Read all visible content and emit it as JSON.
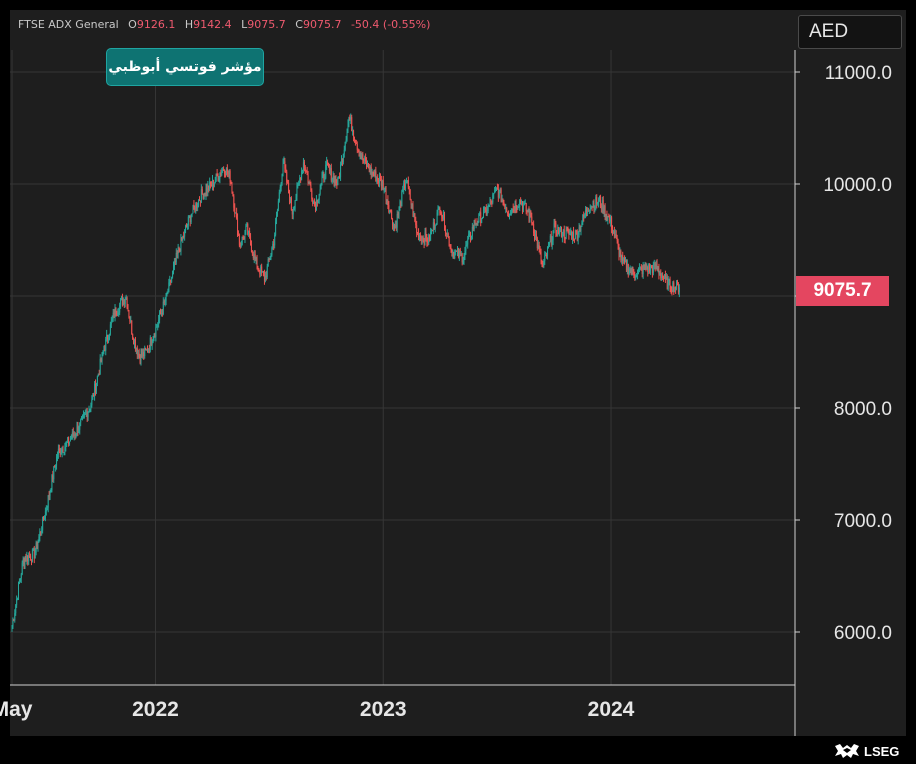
{
  "header": {
    "symbol": "FTSE ADX General",
    "open_label": "O",
    "open": "9126.1",
    "high_label": "H",
    "high": "9142.4",
    "low_label": "L",
    "low": "9075.7",
    "close_label": "C",
    "close": "9075.7",
    "change": "-50.4 (-0.55%)"
  },
  "badge": {
    "text": "مؤشر فوتسي أبوظبي"
  },
  "currency": "AED",
  "last_price": "9075.7",
  "brand": {
    "name": "LSEG"
  },
  "colors": {
    "up": "#26a69a",
    "down": "#ef5350",
    "badge": "#0e7372",
    "price_tag": "#e44660",
    "background": "#1e1e1e"
  },
  "chart_data": {
    "type": "candlestick",
    "title": "FTSE ADX General",
    "currency": "AED",
    "ylim": [
      5600,
      11300
    ],
    "y_ticks": [
      6000,
      7000,
      8000,
      9000,
      10000,
      11000
    ],
    "y_tick_labels": [
      "6000.0",
      "7000.0",
      "8000.0",
      "",
      "10000.0",
      "11000.0"
    ],
    "x_range": [
      2021.37,
      2024.72
    ],
    "x_ticks": [
      {
        "x": 2021.37,
        "label": "May"
      },
      {
        "x": 2022.0,
        "label": "2022"
      },
      {
        "x": 2023.0,
        "label": "2023"
      },
      {
        "x": 2024.0,
        "label": "2024"
      }
    ],
    "grid": true,
    "x": [
      2021.37,
      2021.42,
      2021.47,
      2021.52,
      2021.57,
      2021.62,
      2021.67,
      2021.72,
      2021.77,
      2021.82,
      2021.87,
      2021.9,
      2021.93,
      2021.96,
      2022.0,
      2022.05,
      2022.1,
      2022.15,
      2022.2,
      2022.25,
      2022.3,
      2022.33,
      2022.37,
      2022.4,
      2022.44,
      2022.48,
      2022.52,
      2022.56,
      2022.6,
      2022.65,
      2022.7,
      2022.75,
      2022.8,
      2022.85,
      2022.9,
      2022.95,
      2023.0,
      2023.05,
      2023.1,
      2023.15,
      2023.2,
      2023.25,
      2023.3,
      2023.35,
      2023.4,
      2023.45,
      2023.5,
      2023.55,
      2023.6,
      2023.65,
      2023.7,
      2023.75,
      2023.8,
      2023.85,
      2023.9,
      2023.95,
      2024.0,
      2024.05,
      2024.1,
      2024.15,
      2024.2,
      2024.25,
      2024.3
    ],
    "values": [
      6050,
      6650,
      6700,
      7100,
      7600,
      7700,
      7850,
      8050,
      8500,
      8850,
      9000,
      8650,
      8450,
      8500,
      8700,
      9000,
      9400,
      9700,
      9900,
      10000,
      10150,
      10050,
      9450,
      9600,
      9300,
      9150,
      9500,
      10200,
      9750,
      10200,
      9800,
      10150,
      10000,
      10600,
      10250,
      10100,
      10000,
      9600,
      10050,
      9550,
      9500,
      9800,
      9400,
      9350,
      9650,
      9750,
      9950,
      9750,
      9850,
      9700,
      9250,
      9600,
      9550,
      9550,
      9800,
      9850,
      9650,
      9300,
      9200,
      9250,
      9250,
      9100,
      9075.7
    ]
  }
}
